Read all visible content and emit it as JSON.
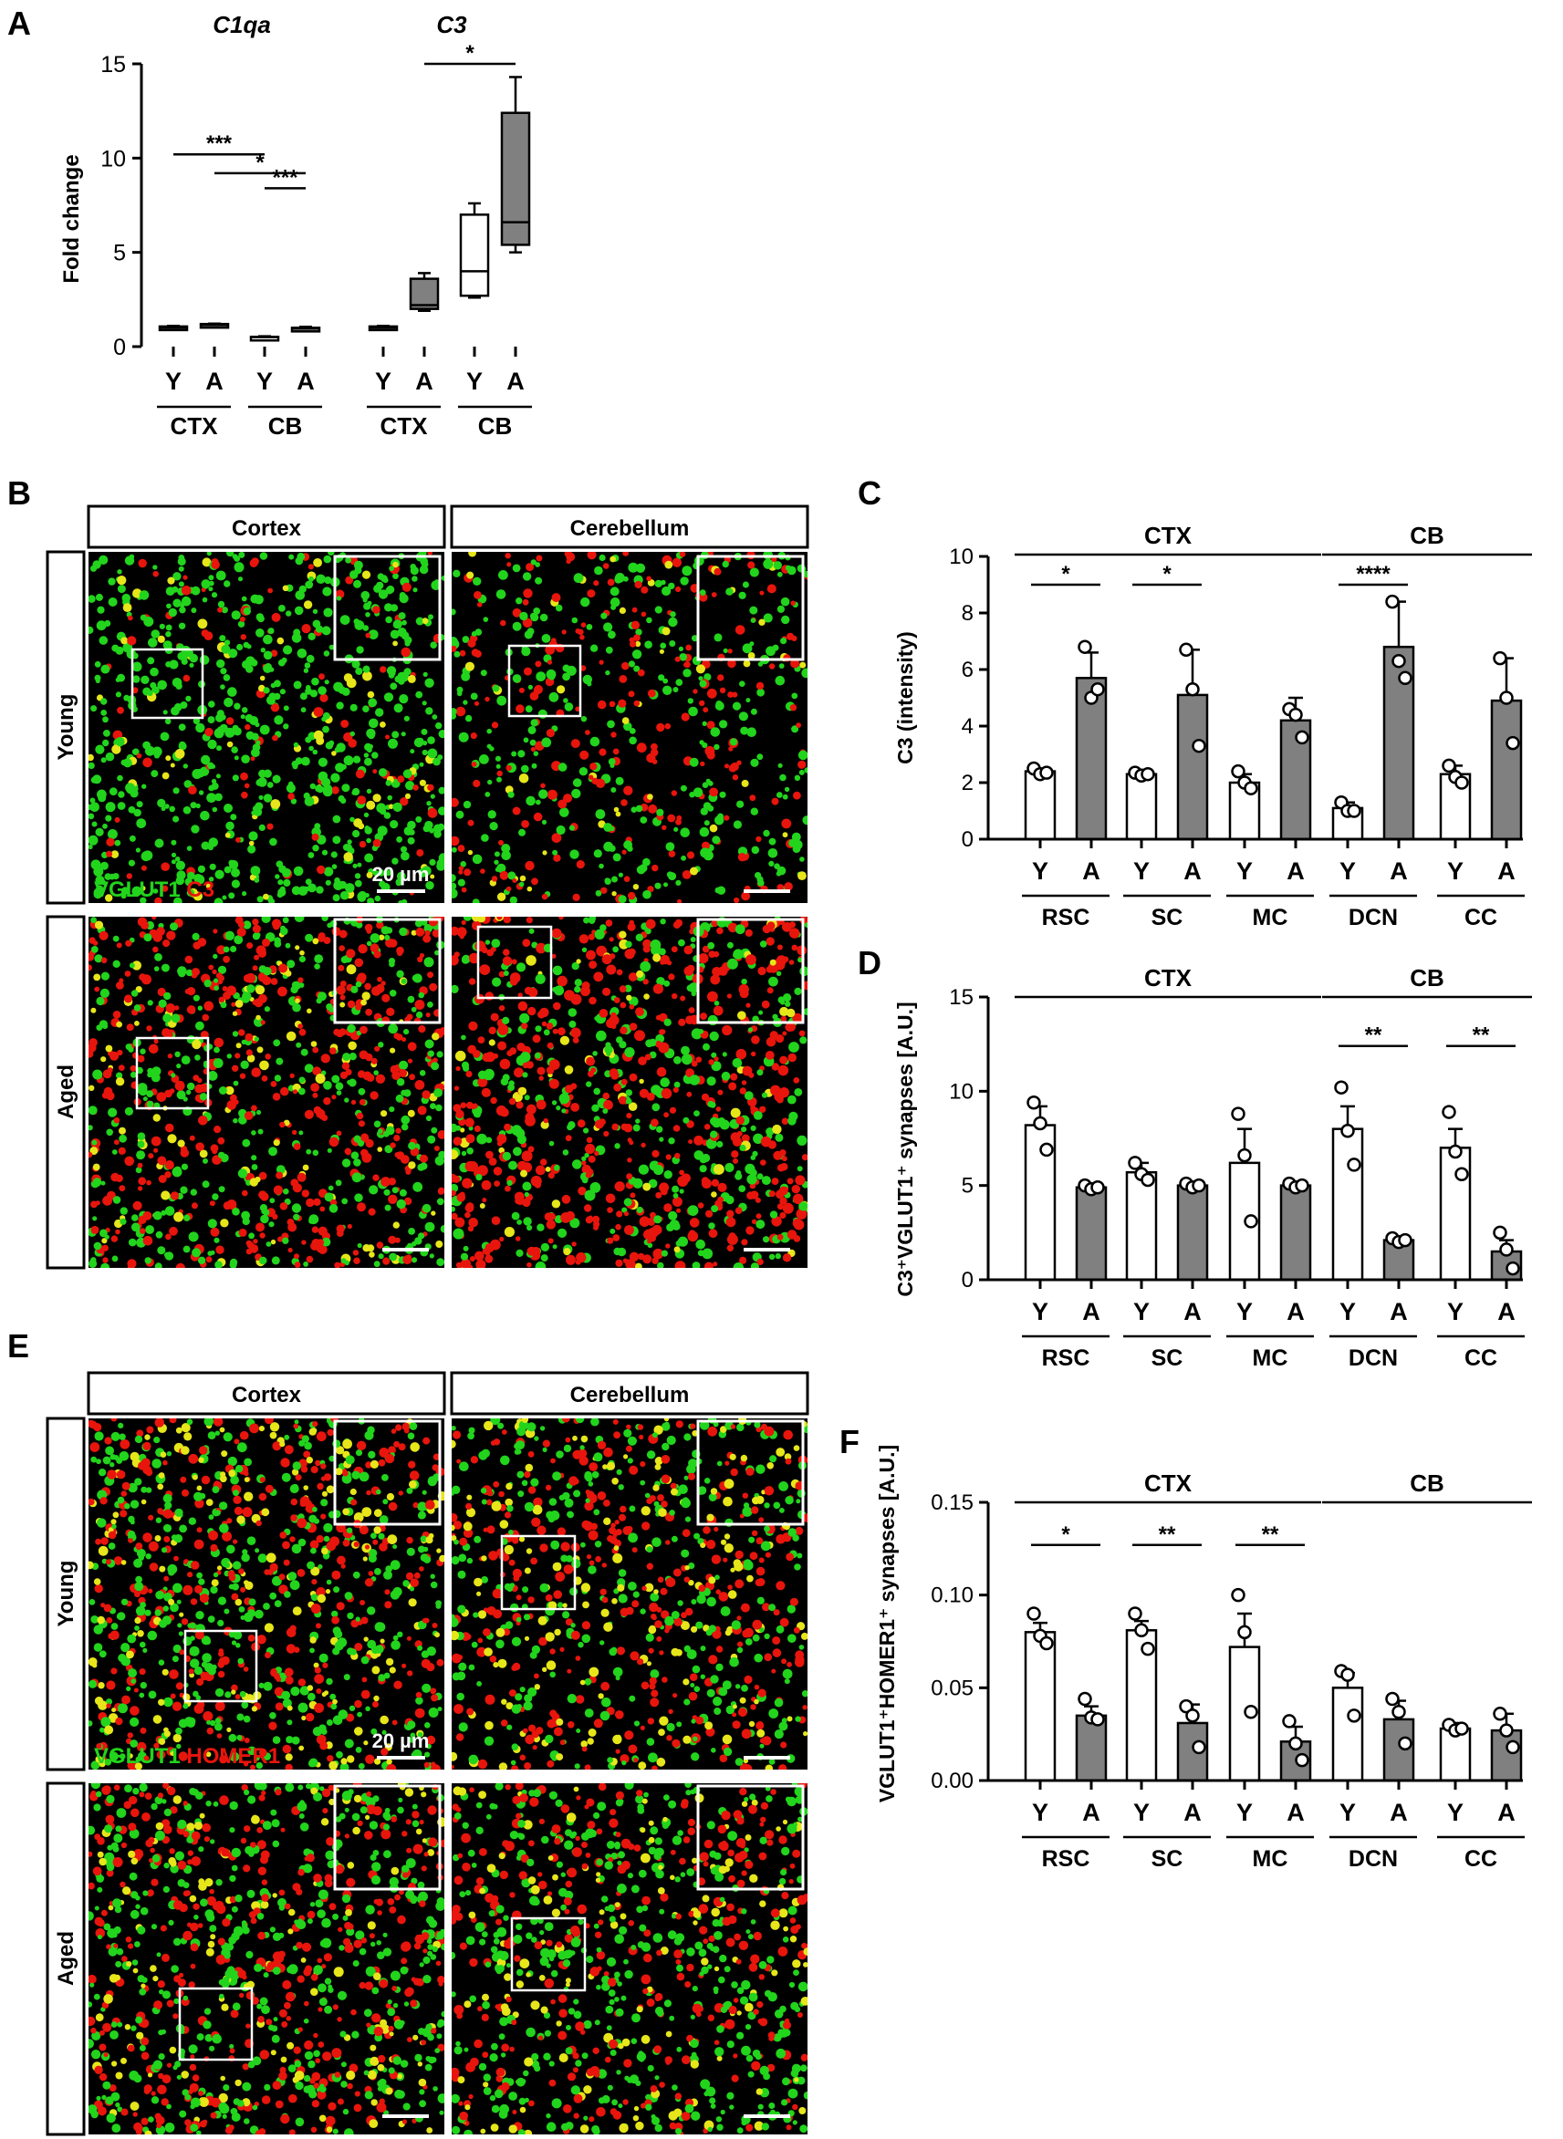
{
  "panel_letters": {
    "a": "A",
    "b": "B",
    "c": "C",
    "d": "D",
    "e": "E",
    "f": "F"
  },
  "micrographs": {
    "b": {
      "columns": [
        "Cortex",
        "Cerebellum"
      ],
      "rows": [
        "Young",
        "Aged"
      ],
      "stain_green": "VGLUT1",
      "stain_red": "C3",
      "scale_label": "20 µm"
    },
    "e": {
      "columns": [
        "Cortex",
        "Cerebellum"
      ],
      "rows": [
        "Young",
        "Aged"
      ],
      "stain_green": "VGLUT1",
      "stain_red": "HOMER1",
      "scale_label": "20 µm"
    },
    "colors": {
      "green": "#22d41c",
      "red": "#e8150c",
      "yellow": "#e6e61a",
      "background": "#000000"
    }
  },
  "chart_data": [
    {
      "panel": "A",
      "type": "box",
      "ylabel": "Fold change",
      "ylim": [
        0,
        15
      ],
      "yticks": [
        0,
        5,
        10,
        15
      ],
      "gene_labels": [
        "C1qa",
        "C3"
      ],
      "x_tick_labels": [
        "Y",
        "A",
        "Y",
        "A",
        "Y",
        "A",
        "Y",
        "A"
      ],
      "region_labels": [
        "CTX",
        "CB",
        "CTX",
        "CB"
      ],
      "boxes": [
        {
          "gene": "C1qa",
          "region": "CTX",
          "group": "Y",
          "min": 0.9,
          "q1": 0.93,
          "median": 1.0,
          "q3": 1.07,
          "max": 1.1,
          "fill": "white"
        },
        {
          "gene": "C1qa",
          "region": "CTX",
          "group": "A",
          "min": 1.1,
          "q1": 1.12,
          "median": 1.15,
          "q3": 1.2,
          "max": 1.22,
          "fill": "gray"
        },
        {
          "gene": "C1qa",
          "region": "CB",
          "group": "Y",
          "min": 0.45,
          "q1": 0.47,
          "median": 0.5,
          "q3": 0.52,
          "max": 0.55,
          "fill": "white"
        },
        {
          "gene": "C1qa",
          "region": "CB",
          "group": "A",
          "min": 0.9,
          "q1": 0.93,
          "median": 0.97,
          "q3": 1.0,
          "max": 1.05,
          "fill": "gray"
        },
        {
          "gene": "C3",
          "region": "CTX",
          "group": "Y",
          "min": 0.9,
          "q1": 0.93,
          "median": 1.0,
          "q3": 1.07,
          "max": 1.1,
          "fill": "white"
        },
        {
          "gene": "C3",
          "region": "CTX",
          "group": "A",
          "min": 1.9,
          "q1": 2.0,
          "median": 2.2,
          "q3": 3.6,
          "max": 3.9,
          "fill": "gray"
        },
        {
          "gene": "C3",
          "region": "CB",
          "group": "Y",
          "min": 2.6,
          "q1": 2.7,
          "median": 4.0,
          "q3": 7.0,
          "max": 7.6,
          "fill": "white"
        },
        {
          "gene": "C3",
          "region": "CB",
          "group": "A",
          "min": 5.0,
          "q1": 5.4,
          "median": 6.6,
          "q3": 12.4,
          "max": 14.3,
          "fill": "gray"
        }
      ],
      "significance": [
        {
          "from": 0,
          "to": 2,
          "level": 10.2,
          "label": "***"
        },
        {
          "from": 1,
          "to": 3,
          "level": 9.2,
          "label": "*"
        },
        {
          "from": 2,
          "to": 3,
          "level": 8.4,
          "label": "***"
        },
        {
          "from": 5,
          "to": 7,
          "level": 15.0,
          "label": "*"
        }
      ]
    },
    {
      "panel": "C",
      "type": "bar",
      "ylabel": "C3 (intensity)",
      "ylim": [
        0,
        10
      ],
      "yticks": [
        "0",
        "2",
        "4",
        "6",
        "8",
        "10"
      ],
      "categories": [
        "RSC",
        "SC",
        "MC",
        "DCN",
        "CC"
      ],
      "groups": [
        "Y",
        "A"
      ],
      "top_groups": [
        {
          "label": "CTX",
          "from": 0,
          "to": 2
        },
        {
          "label": "CB",
          "from": 3,
          "to": 4
        }
      ],
      "series": [
        {
          "group": "Y",
          "values": [
            2.4,
            2.3,
            2.0,
            1.1,
            2.3
          ],
          "errors": [
            0.1,
            0.1,
            0.3,
            0.2,
            0.3
          ],
          "points": [
            [
              2.5,
              2.3,
              2.35
            ],
            [
              2.35,
              2.25,
              2.3
            ],
            [
              2.4,
              2.0,
              1.8
            ],
            [
              1.3,
              1.0,
              1.0
            ],
            [
              2.6,
              2.2,
              2.0
            ]
          ]
        },
        {
          "group": "A",
          "values": [
            5.7,
            5.1,
            4.2,
            6.8,
            4.9
          ],
          "errors": [
            0.9,
            1.6,
            0.8,
            1.6,
            1.5
          ],
          "points": [
            [
              6.8,
              5.0,
              5.3
            ],
            [
              6.7,
              5.3,
              3.3
            ],
            [
              4.6,
              4.4,
              3.6
            ],
            [
              8.4,
              6.3,
              5.7
            ],
            [
              6.4,
              5.0,
              3.4
            ]
          ]
        }
      ],
      "significance": [
        {
          "category": 0,
          "label": "*",
          "level": 9.0
        },
        {
          "category": 1,
          "label": "*",
          "level": 9.0
        },
        {
          "category": 3,
          "label": "****",
          "level": 9.0
        }
      ]
    },
    {
      "panel": "D",
      "type": "bar",
      "ylabel": "C3⁺VGLUT1⁺ synapses [A.U.]",
      "ylim": [
        0,
        15
      ],
      "yticks": [
        "0",
        "5",
        "10",
        "15"
      ],
      "categories": [
        "RSC",
        "SC",
        "MC",
        "DCN",
        "CC"
      ],
      "groups": [
        "Y",
        "A"
      ],
      "top_groups": [
        {
          "label": "CTX",
          "from": 0,
          "to": 2
        },
        {
          "label": "CB",
          "from": 3,
          "to": 4
        }
      ],
      "series": [
        {
          "group": "Y",
          "values": [
            8.2,
            5.7,
            6.2,
            8.0,
            7.0
          ],
          "errors": [
            1.0,
            0.5,
            1.8,
            1.2,
            1.0
          ],
          "points": [
            [
              9.4,
              8.3,
              6.9
            ],
            [
              6.2,
              5.6,
              5.3
            ],
            [
              8.8,
              6.6,
              3.1
            ],
            [
              10.2,
              7.9,
              6.1
            ],
            [
              8.9,
              6.8,
              5.6
            ]
          ]
        },
        {
          "group": "A",
          "values": [
            4.9,
            5.0,
            5.0,
            2.1,
            1.5
          ],
          "errors": [
            0.1,
            0.1,
            0.2,
            0.1,
            0.6
          ],
          "points": [
            [
              5.0,
              4.8,
              4.9
            ],
            [
              5.1,
              4.9,
              5.0
            ],
            [
              5.1,
              4.9,
              5.0
            ],
            [
              2.2,
              2.0,
              2.1
            ],
            [
              2.5,
              1.6,
              0.6
            ]
          ]
        }
      ],
      "significance": [
        {
          "category": 3,
          "label": "**",
          "level": 12.4
        },
        {
          "category": 4,
          "label": "**",
          "level": 12.4
        }
      ]
    },
    {
      "panel": "F",
      "type": "bar",
      "ylabel": "VGLUT1⁺HOMER1⁺ synapses [A.U.]",
      "ylim": [
        0,
        0.15
      ],
      "yticks": [
        "0.00",
        "0.05",
        "0.10",
        "0.15"
      ],
      "categories": [
        "RSC",
        "SC",
        "MC",
        "DCN",
        "CC"
      ],
      "groups": [
        "Y",
        "A"
      ],
      "top_groups": [
        {
          "label": "CTX",
          "from": 0,
          "to": 2
        },
        {
          "label": "CB",
          "from": 3,
          "to": 4
        }
      ],
      "series": [
        {
          "group": "Y",
          "values": [
            0.08,
            0.081,
            0.072,
            0.05,
            0.028
          ],
          "errors": [
            0.005,
            0.005,
            0.018,
            0.008,
            0.003
          ],
          "points": [
            [
              0.09,
              0.078,
              0.074
            ],
            [
              0.09,
              0.081,
              0.071
            ],
            [
              0.1,
              0.08,
              0.037
            ],
            [
              0.059,
              0.057,
              0.035
            ],
            [
              0.03,
              0.027,
              0.028
            ]
          ]
        },
        {
          "group": "A",
          "values": [
            0.035,
            0.031,
            0.021,
            0.033,
            0.027
          ],
          "errors": [
            0.005,
            0.01,
            0.008,
            0.01,
            0.009
          ],
          "points": [
            [
              0.044,
              0.034,
              0.033
            ],
            [
              0.04,
              0.035,
              0.018
            ],
            [
              0.032,
              0.02,
              0.011
            ],
            [
              0.044,
              0.037,
              0.02
            ],
            [
              0.036,
              0.027,
              0.018
            ]
          ]
        }
      ],
      "significance": [
        {
          "category": 0,
          "label": "*",
          "level": 0.127
        },
        {
          "category": 1,
          "label": "**",
          "level": 0.127
        },
        {
          "category": 2,
          "label": "**",
          "level": 0.127
        }
      ]
    }
  ]
}
